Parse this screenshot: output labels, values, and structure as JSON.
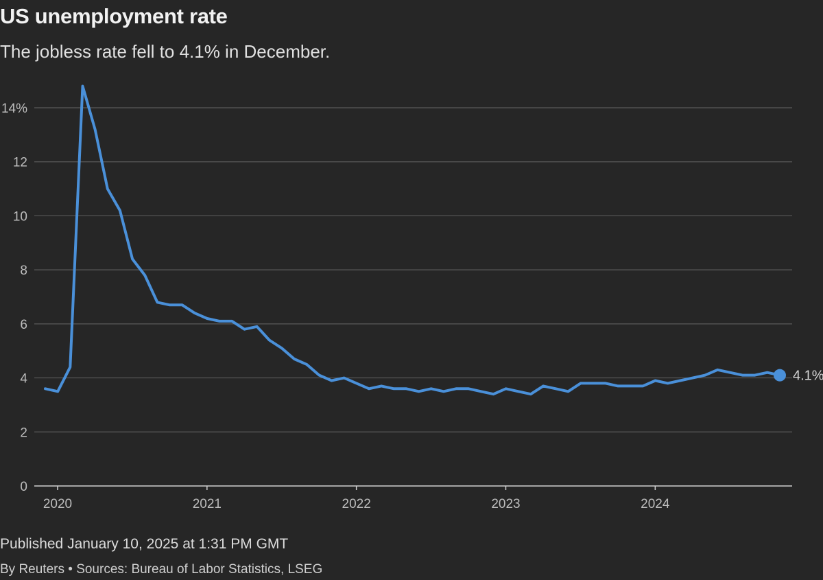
{
  "header": {
    "title": "US unemployment rate",
    "subtitle": "The jobless rate fell to 4.1% in December."
  },
  "footer": {
    "published": "Published January 10, 2025 at 1:31 PM GMT",
    "byline": "By Reuters • Sources: Bureau of Labor Statistics, LSEG"
  },
  "colors": {
    "background": "#262626",
    "line": "#4a90d9",
    "grid": "#5a5a5a"
  },
  "chart_data": {
    "type": "line",
    "title": "US unemployment rate",
    "subtitle": "The jobless rate fell to 4.1% in December.",
    "xlabel": "",
    "ylabel": "",
    "ylim": [
      0,
      14
    ],
    "y_ticks": [
      0,
      2,
      4,
      6,
      8,
      10,
      12,
      14
    ],
    "y_tick_labels": [
      "0",
      "2",
      "4",
      "6",
      "8",
      "10",
      "12",
      "14%"
    ],
    "x_ticks": [
      "2020",
      "2021",
      "2022",
      "2023",
      "2024"
    ],
    "grid": true,
    "end_label": "4.1%",
    "series": [
      {
        "x": [
          "2020-01",
          "2020-02",
          "2020-03",
          "2020-04",
          "2020-05",
          "2020-06",
          "2020-07",
          "2020-08",
          "2020-09",
          "2020-10",
          "2020-11",
          "2020-12",
          "2021-01",
          "2021-02",
          "2021-03",
          "2021-04",
          "2021-05",
          "2021-06",
          "2021-07",
          "2021-08",
          "2021-09",
          "2021-10",
          "2021-11",
          "2021-12",
          "2022-01",
          "2022-02",
          "2022-03",
          "2022-04",
          "2022-05",
          "2022-06",
          "2022-07",
          "2022-08",
          "2022-09",
          "2022-10",
          "2022-11",
          "2022-12",
          "2023-01",
          "2023-02",
          "2023-03",
          "2023-04",
          "2023-05",
          "2023-06",
          "2023-07",
          "2023-08",
          "2023-09",
          "2023-10",
          "2023-11",
          "2023-12",
          "2024-01",
          "2024-02",
          "2024-03",
          "2024-04",
          "2024-05",
          "2024-06",
          "2024-07",
          "2024-08",
          "2024-09",
          "2024-10",
          "2024-11",
          "2024-12"
        ],
        "values": [
          3.6,
          3.5,
          4.4,
          14.8,
          13.2,
          11.0,
          10.2,
          8.4,
          7.8,
          6.8,
          6.7,
          6.7,
          6.4,
          6.2,
          6.1,
          6.1,
          5.8,
          5.9,
          5.4,
          5.1,
          4.7,
          4.5,
          4.1,
          3.9,
          4.0,
          3.8,
          3.6,
          3.7,
          3.6,
          3.6,
          3.5,
          3.6,
          3.5,
          3.6,
          3.6,
          3.5,
          3.4,
          3.6,
          3.5,
          3.4,
          3.7,
          3.6,
          3.5,
          3.8,
          3.8,
          3.8,
          3.7,
          3.7,
          3.7,
          3.9,
          3.8,
          3.9,
          4.0,
          4.1,
          4.3,
          4.2,
          4.1,
          4.1,
          4.2,
          4.1
        ]
      }
    ]
  }
}
